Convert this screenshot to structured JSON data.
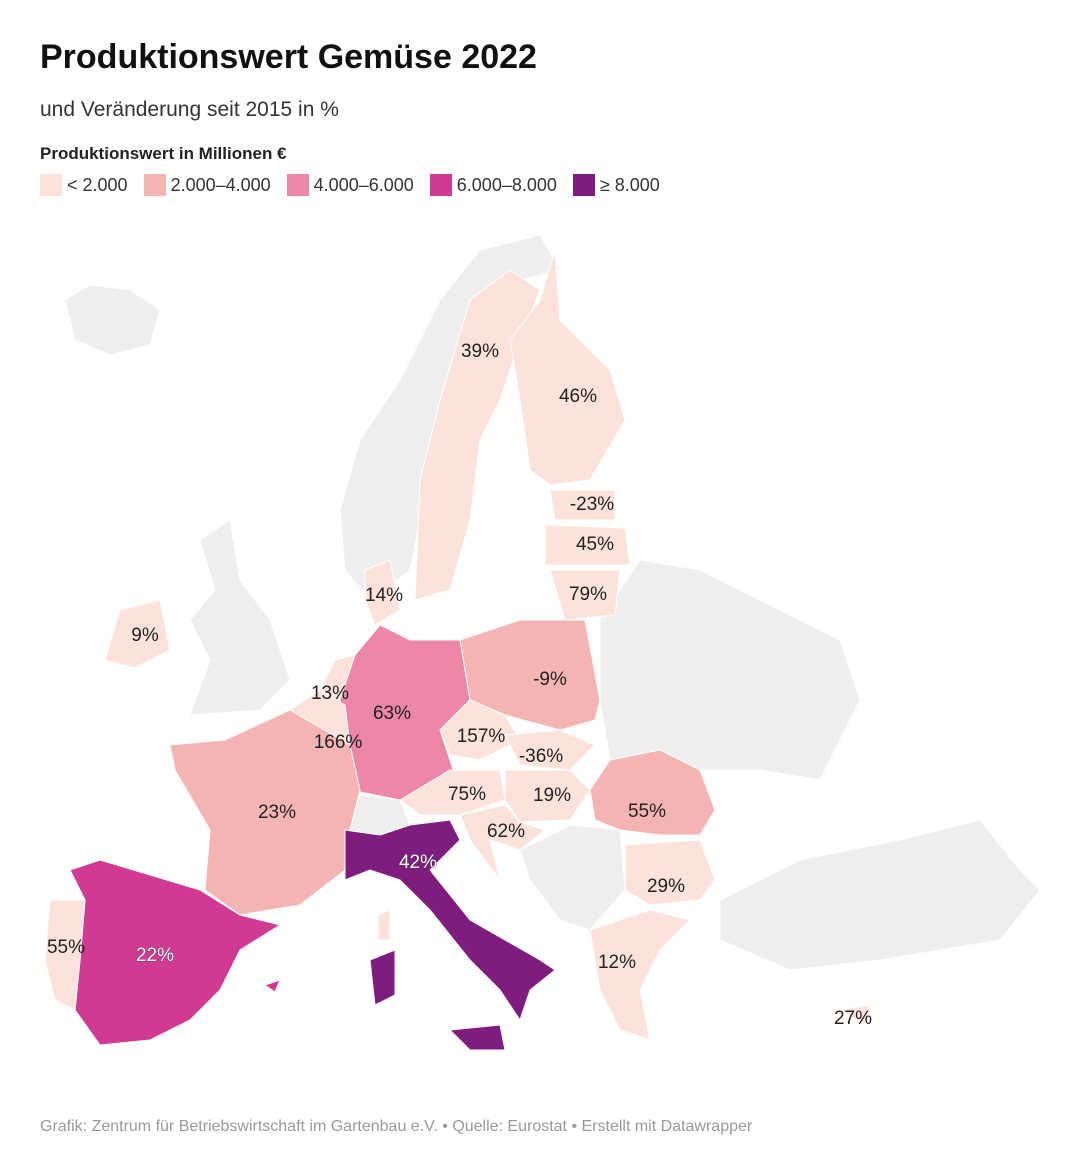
{
  "header": {
    "title": "Produktionswert Gemüse 2022",
    "subtitle": "und Veränderung seit 2015 in %"
  },
  "legend": {
    "title": "Produktionswert in Millionen €",
    "items": [
      {
        "label": "< 2.000",
        "color": "#fbe3dc"
      },
      {
        "label": "2.000–4.000",
        "color": "#f4b4b4"
      },
      {
        "label": "4.000–6.000",
        "color": "#ec87a8"
      },
      {
        "label": "6.000–8.000",
        "color": "#d03a93"
      },
      {
        "label": "≥ 8.000",
        "color": "#7f1d7e"
      }
    ]
  },
  "regions": [
    {
      "label": "39%",
      "bin": 0
    },
    {
      "label": "46%",
      "bin": 0
    },
    {
      "label": "-23%",
      "bin": 0
    },
    {
      "label": "45%",
      "bin": 0
    },
    {
      "label": "79%",
      "bin": 0
    },
    {
      "label": "14%",
      "bin": 0
    },
    {
      "label": "9%",
      "bin": 0
    },
    {
      "label": "-9%",
      "bin": 1
    },
    {
      "label": "13%",
      "bin": 0
    },
    {
      "label": "63%",
      "bin": 2
    },
    {
      "label": "166%",
      "bin": 0
    },
    {
      "label": "157%",
      "bin": 0
    },
    {
      "label": "-36%",
      "bin": 0
    },
    {
      "label": "75%",
      "bin": 0
    },
    {
      "label": "19%",
      "bin": 0
    },
    {
      "label": "62%",
      "bin": 0
    },
    {
      "label": "55%",
      "bin": 1
    },
    {
      "label": "23%",
      "bin": 1
    },
    {
      "label": "42%",
      "bin": 4
    },
    {
      "label": "29%",
      "bin": 0
    },
    {
      "label": "22%",
      "bin": 3
    },
    {
      "label": "55%",
      "bin": 0
    },
    {
      "label": "12%",
      "bin": 0
    },
    {
      "label": "27%",
      "bin": 0
    }
  ],
  "footer": "Grafik: Zentrum für Betriebswirtschaft im Gartenbau e.V. • Quelle: Eurostat • Erstellt mit Datawrapper"
}
